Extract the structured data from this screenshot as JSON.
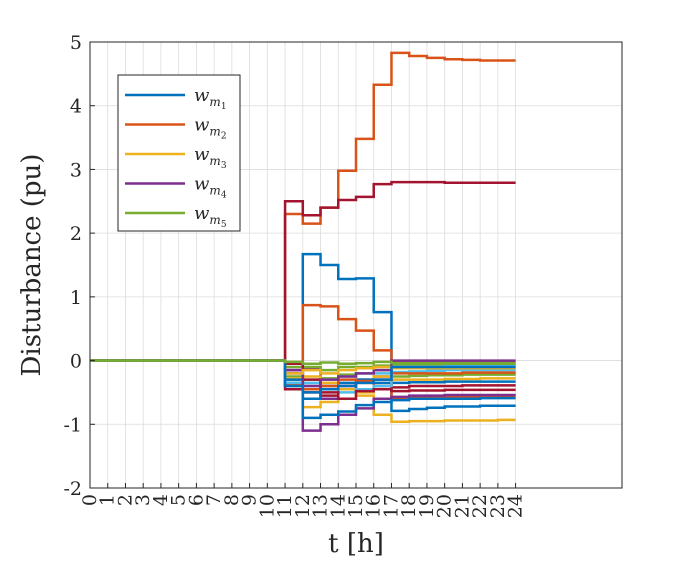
{
  "chart_data": {
    "type": "line",
    "step": "post",
    "xlabel": "t [h]",
    "ylabel": "Disturbance (pu)",
    "xlim": [
      0,
      30
    ],
    "ylim": [
      -2,
      5
    ],
    "xticks": [
      "0",
      "1",
      "2",
      "3",
      "4",
      "5",
      "6",
      "7",
      "8",
      "9",
      "10",
      "11",
      "12",
      "13",
      "14",
      "15",
      "16",
      "17",
      "18",
      "19",
      "20",
      "21",
      "22",
      "23",
      "24"
    ],
    "yticks": [
      "5",
      "4",
      "3",
      "2",
      "1",
      "0",
      "-1",
      "-2"
    ],
    "grid": true,
    "legend": {
      "placement": "top-left",
      "entries": [
        {
          "base": "w",
          "sub": "m",
          "subsub": "1",
          "color": "#0072BD"
        },
        {
          "base": "w",
          "sub": "m",
          "subsub": "2",
          "color": "#D95319"
        },
        {
          "base": "w",
          "sub": "m",
          "subsub": "3",
          "color": "#EDB120"
        },
        {
          "base": "w",
          "sub": "m",
          "subsub": "4",
          "color": "#7E2F8E"
        },
        {
          "base": "w",
          "sub": "m",
          "subsub": "5",
          "color": "#77AC30"
        }
      ]
    },
    "x": [
      0,
      1,
      2,
      3,
      4,
      5,
      6,
      7,
      8,
      9,
      10,
      11,
      12,
      13,
      14,
      15,
      16,
      17,
      18,
      19,
      20,
      21,
      22,
      23,
      24
    ],
    "series": [
      {
        "color": "#D95319",
        "values": [
          0,
          0,
          0,
          0,
          0,
          0,
          0,
          0,
          0,
          0,
          0,
          2.3,
          2.15,
          2.4,
          2.98,
          3.48,
          4.33,
          4.83,
          4.78,
          4.75,
          4.73,
          4.72,
          4.71,
          4.71,
          4.71
        ]
      },
      {
        "color": "#A2142F",
        "values": [
          0,
          0,
          0,
          0,
          0,
          0,
          0,
          0,
          0,
          0,
          0,
          2.5,
          2.28,
          2.4,
          2.52,
          2.57,
          2.77,
          2.8,
          2.8,
          2.8,
          2.79,
          2.79,
          2.79,
          2.79,
          2.79
        ]
      },
      {
        "color": "#0072BD",
        "values": [
          0,
          0,
          0,
          0,
          0,
          0,
          0,
          0,
          0,
          0,
          0,
          -0.4,
          1.67,
          1.5,
          1.28,
          1.29,
          0.76,
          -0.79,
          -0.76,
          -0.74,
          -0.72,
          -0.72,
          -0.71,
          -0.71,
          -0.71
        ]
      },
      {
        "color": "#D95319",
        "values": [
          0,
          0,
          0,
          0,
          0,
          0,
          0,
          0,
          0,
          0,
          0,
          -0.38,
          0.87,
          0.85,
          0.65,
          0.47,
          0.16,
          -0.6,
          -0.58,
          -0.58,
          -0.57,
          -0.57,
          -0.56,
          -0.56,
          -0.56
        ]
      },
      {
        "color": "#EDB120",
        "values": [
          0,
          0,
          0,
          0,
          0,
          0,
          0,
          0,
          0,
          0,
          0,
          -0.3,
          -0.73,
          -0.65,
          -0.6,
          -0.55,
          -0.85,
          -0.96,
          -0.95,
          -0.95,
          -0.94,
          -0.94,
          -0.94,
          -0.93,
          -0.93
        ]
      },
      {
        "color": "#7E2F8E",
        "values": [
          0,
          0,
          0,
          0,
          0,
          0,
          0,
          0,
          0,
          0,
          0,
          -0.2,
          -1.1,
          -1.0,
          -0.85,
          -0.75,
          -0.6,
          -0.57,
          -0.55,
          -0.55,
          -0.54,
          -0.54,
          -0.54,
          -0.54,
          -0.54
        ]
      },
      {
        "color": "#0072BD",
        "values": [
          0,
          0,
          0,
          0,
          0,
          0,
          0,
          0,
          0,
          0,
          0,
          -0.35,
          -0.9,
          -0.85,
          -0.8,
          -0.7,
          -0.65,
          -0.62,
          -0.6,
          -0.6,
          -0.6,
          -0.6,
          -0.59,
          -0.59,
          -0.59
        ]
      },
      {
        "color": "#77AC30",
        "values": [
          0,
          0,
          0,
          0,
          0,
          0,
          0,
          0,
          0,
          0,
          0,
          -0.25,
          -0.3,
          -0.28,
          -0.22,
          -0.2,
          -0.15,
          -0.25,
          -0.24,
          -0.23,
          -0.23,
          -0.22,
          -0.22,
          -0.22,
          -0.22
        ]
      },
      {
        "color": "#4DBEEE",
        "values": [
          0,
          0,
          0,
          0,
          0,
          0,
          0,
          0,
          0,
          0,
          0,
          -0.3,
          -0.35,
          -0.3,
          -0.25,
          -0.2,
          -0.2,
          -0.18,
          -0.17,
          -0.16,
          -0.15,
          -0.15,
          -0.15,
          -0.15,
          -0.15
        ]
      },
      {
        "color": "#A2142F",
        "values": [
          0,
          0,
          0,
          0,
          0,
          0,
          0,
          0,
          0,
          0,
          0,
          -0.45,
          -0.5,
          -0.55,
          -0.4,
          -0.35,
          -0.3,
          -0.42,
          -0.4,
          -0.4,
          -0.4,
          -0.39,
          -0.39,
          -0.39,
          -0.39
        ]
      },
      {
        "color": "#7E2F8E",
        "values": [
          0,
          0,
          0,
          0,
          0,
          0,
          0,
          0,
          0,
          0,
          0,
          -0.15,
          -0.12,
          -0.6,
          -0.45,
          -0.3,
          -0.25,
          -0.02,
          -0.02,
          -0.02,
          -0.02,
          -0.02,
          -0.02,
          -0.02,
          -0.02
        ]
      },
      {
        "color": "#EDB120",
        "values": [
          0,
          0,
          0,
          0,
          0,
          0,
          0,
          0,
          0,
          0,
          0,
          -0.28,
          -0.25,
          -0.35,
          -0.45,
          -0.5,
          -0.25,
          -0.3,
          -0.3,
          -0.3,
          -0.29,
          -0.29,
          -0.28,
          -0.28,
          -0.28
        ]
      },
      {
        "color": "#0072BD",
        "values": [
          0,
          0,
          0,
          0,
          0,
          0,
          0,
          0,
          0,
          0,
          0,
          -0.3,
          -0.6,
          -0.4,
          -0.35,
          -0.3,
          -0.35,
          -0.35,
          -0.34,
          -0.34,
          -0.33,
          -0.33,
          -0.33,
          -0.33,
          -0.33
        ]
      },
      {
        "color": "#D95319",
        "values": [
          0,
          0,
          0,
          0,
          0,
          0,
          0,
          0,
          0,
          0,
          0,
          -0.35,
          -0.45,
          -0.4,
          -0.3,
          -0.32,
          -0.4,
          -0.2,
          -0.2,
          -0.2,
          -0.2,
          -0.19,
          -0.19,
          -0.19,
          -0.19
        ]
      },
      {
        "color": "#77AC30",
        "values": [
          0,
          0,
          0,
          0,
          0,
          0,
          0,
          0,
          0,
          0,
          0,
          -0.1,
          -0.1,
          -0.15,
          -0.1,
          -0.1,
          -0.08,
          -0.06,
          -0.06,
          -0.06,
          -0.06,
          -0.06,
          -0.06,
          -0.06,
          -0.06
        ]
      },
      {
        "color": "#4DBEEE",
        "values": [
          0,
          0,
          0,
          0,
          0,
          0,
          0,
          0,
          0,
          0,
          0,
          -0.35,
          -0.4,
          -0.45,
          -0.5,
          -0.45,
          -0.4,
          -0.1,
          -0.1,
          -0.1,
          -0.09,
          -0.09,
          -0.09,
          -0.09,
          -0.09
        ]
      },
      {
        "color": "#A2142F",
        "values": [
          0,
          0,
          0,
          0,
          0,
          0,
          0,
          0,
          0,
          0,
          0,
          -0.05,
          -0.3,
          -0.5,
          -0.6,
          -0.48,
          -0.45,
          -0.48,
          -0.47,
          -0.47,
          -0.46,
          -0.46,
          -0.46,
          -0.46,
          -0.46
        ]
      },
      {
        "color": "#7E2F8E",
        "values": [
          0,
          0,
          0,
          0,
          0,
          0,
          0,
          0,
          0,
          0,
          0,
          -0.15,
          -0.4,
          -0.3,
          -0.25,
          -0.2,
          -0.15,
          0.0,
          0.0,
          0.0,
          0.0,
          0.0,
          0.0,
          0.0,
          0.0
        ]
      },
      {
        "color": "#EDB120",
        "values": [
          0,
          0,
          0,
          0,
          0,
          0,
          0,
          0,
          0,
          0,
          0,
          -0.2,
          -0.15,
          -0.2,
          -0.15,
          -0.12,
          -0.1,
          -0.12,
          -0.12,
          -0.12,
          -0.12,
          -0.12,
          -0.12,
          -0.12,
          -0.12
        ]
      },
      {
        "color": "#0072BD",
        "values": [
          0,
          0,
          0,
          0,
          0,
          0,
          0,
          0,
          0,
          0,
          0,
          -0.4,
          -0.5,
          -0.45,
          -0.4,
          -0.35,
          -0.3,
          -0.1,
          -0.1,
          -0.1,
          -0.1,
          -0.1,
          -0.1,
          -0.1,
          -0.1
        ]
      },
      {
        "color": "#77AC30",
        "values": [
          0,
          0,
          0,
          0,
          0,
          0,
          0,
          0,
          0,
          0,
          0,
          -0.02,
          -0.05,
          -0.03,
          -0.05,
          -0.04,
          -0.02,
          -0.04,
          -0.04,
          -0.04,
          -0.04,
          -0.04,
          -0.04,
          -0.04,
          -0.04
        ]
      }
    ]
  }
}
